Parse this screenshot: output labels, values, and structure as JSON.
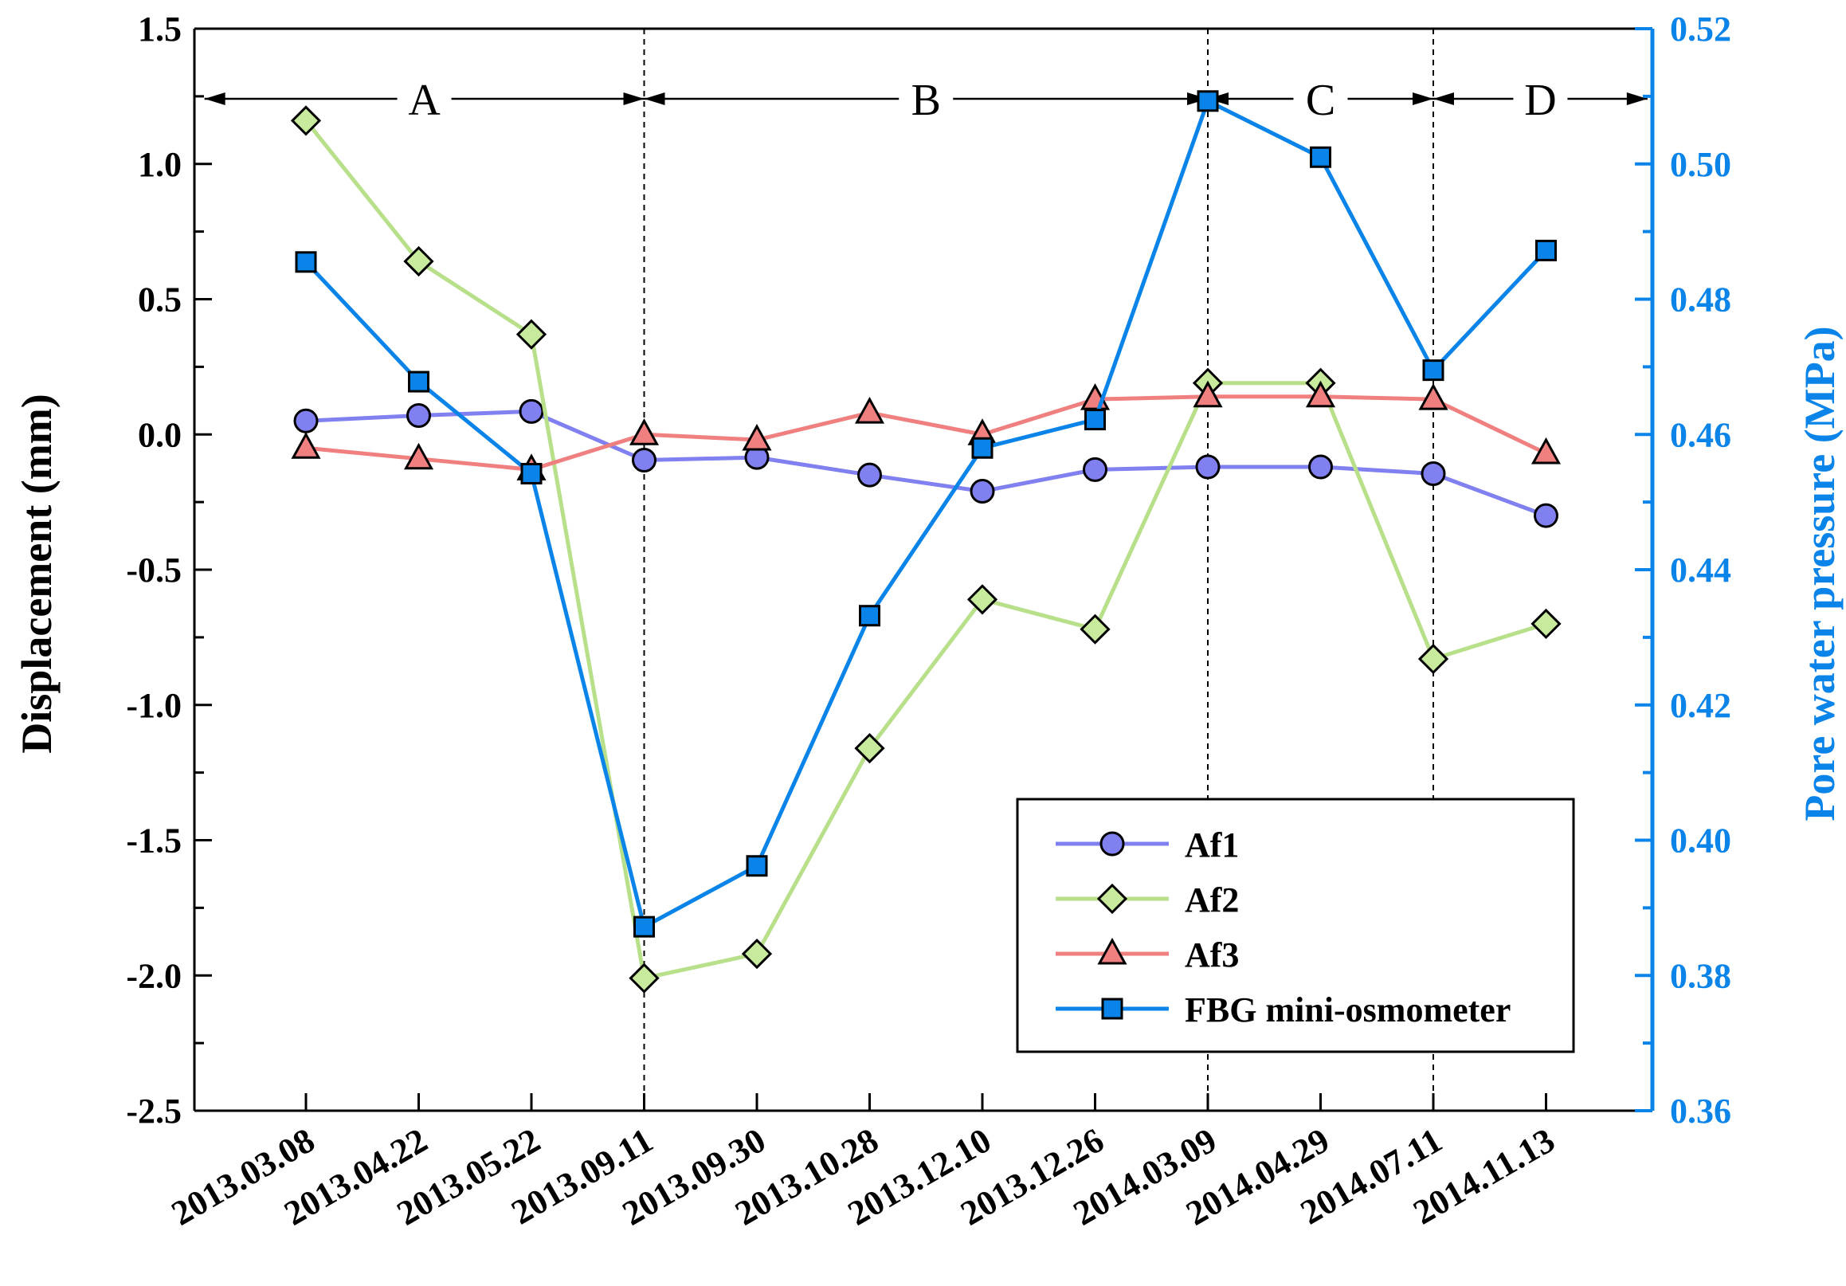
{
  "chart_data": {
    "type": "line",
    "categories": [
      "2013.03.08",
      "2013.04.22",
      "2013.05.22",
      "2013.09.11",
      "2013.09.30",
      "2013.10.28",
      "2013.12.10",
      "2013.12.26",
      "2014.03.09",
      "2014.04.29",
      "2014.07.11",
      "2014.11.13"
    ],
    "ylabel": "Displacement (mm)",
    "y2label": "Pore water pressure (MPa)",
    "ylim": [
      -2.5,
      1.5
    ],
    "y2lim": [
      0.36,
      0.52
    ],
    "yticks": [
      "1.5",
      "1.0",
      "0.5",
      "0.0",
      "-0.5",
      "-1.0",
      "-1.5",
      "-2.0",
      "-2.5"
    ],
    "y2ticks": [
      "0.52",
      "0.50",
      "0.48",
      "0.46",
      "0.44",
      "0.42",
      "0.40",
      "0.38",
      "0.36"
    ],
    "phases": [
      {
        "label": "A",
        "from": -0.9,
        "to": 3
      },
      {
        "label": "B",
        "from": 3,
        "to": 8
      },
      {
        "label": "C",
        "from": 8,
        "to": 10
      },
      {
        "label": "D",
        "from": 10,
        "to": 11.9
      }
    ],
    "dividers": [
      3,
      8,
      10
    ],
    "series": [
      {
        "name": "Af1",
        "axis": "left",
        "marker": "circle",
        "color": "#8080f0",
        "fill": "#8080f0",
        "values": [
          0.05,
          0.07,
          0.085,
          -0.095,
          -0.085,
          -0.15,
          -0.21,
          -0.13,
          -0.12,
          -0.12,
          -0.145,
          -0.3
        ]
      },
      {
        "name": "Af2",
        "axis": "left",
        "marker": "diamond",
        "color": "#b8e08a",
        "fill": "#c8ea9c",
        "values": [
          1.16,
          0.64,
          0.37,
          -2.01,
          -1.92,
          -1.16,
          -0.61,
          -0.72,
          0.19,
          0.19,
          -0.83,
          -0.7
        ]
      },
      {
        "name": "Af3",
        "axis": "left",
        "marker": "triangle",
        "color": "#f08080",
        "fill": "#f08080",
        "values": [
          -0.05,
          -0.09,
          -0.13,
          0.0,
          -0.02,
          0.08,
          0.0,
          0.13,
          0.14,
          0.14,
          0.13,
          -0.07
        ]
      },
      {
        "name": "FBG mini-osmometer",
        "axis": "right",
        "marker": "square",
        "color": "#0a84e8",
        "fill": "#0a84e8",
        "values": [
          0.4855,
          0.4678,
          0.4542,
          0.3872,
          0.3962,
          0.4332,
          0.458,
          0.4622,
          0.5093,
          0.501,
          0.4695,
          0.4872
        ]
      }
    ],
    "legend": {
      "placement": "bottom-right"
    },
    "colors": {
      "right_axis": "#0a84e8",
      "axis": "#000000"
    }
  }
}
